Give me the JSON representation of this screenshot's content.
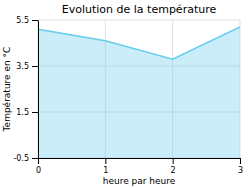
{
  "chart_data": {
    "type": "area",
    "title": "Evolution de la température",
    "x_label": "heure par heure",
    "y_label": "Température en °C",
    "x": [
      0,
      1,
      2,
      3
    ],
    "values": [
      5.1,
      4.6,
      3.8,
      5.2
    ],
    "xlim": [
      0,
      3
    ],
    "ylim": [
      -0.5,
      5.5
    ],
    "xticks": [
      0,
      1,
      2,
      3
    ],
    "yticks": [
      -0.5,
      1.5,
      3.5,
      5.5
    ],
    "color": "#66ccee",
    "grid": true
  }
}
